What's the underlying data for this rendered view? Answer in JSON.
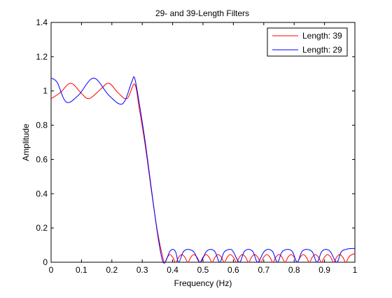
{
  "chart_data": {
    "type": "line",
    "title": "29- and 39-Length Filters",
    "xlabel": "Frequency (Hz)",
    "ylabel": "Amplitude",
    "xlim": [
      0,
      1
    ],
    "ylim": [
      0,
      1.4
    ],
    "x_ticks": [
      0,
      0.1,
      0.2,
      0.3,
      0.4,
      0.5,
      0.6,
      0.7,
      0.8,
      0.9,
      1
    ],
    "x_tick_labels": [
      "0",
      "0.1",
      "0.2",
      "0.3",
      "0.4",
      "0.5",
      "0.6",
      "0.7",
      "0.8",
      "0.9",
      "1"
    ],
    "y_ticks": [
      0,
      0.2,
      0.4,
      0.6,
      0.8,
      1,
      1.2,
      1.4
    ],
    "y_tick_labels": [
      "0",
      "0.2",
      "0.4",
      "0.6",
      "0.8",
      "1",
      "1.2",
      "1.4"
    ],
    "grid": false,
    "legend_position": "top-right",
    "series": [
      {
        "name": "Length: 39",
        "color": "#ff0000",
        "x": [
          0,
          0.03,
          0.065,
          0.1,
          0.125,
          0.16,
          0.19,
          0.22,
          0.25,
          0.275,
          0.29,
          0.31,
          0.33,
          0.35,
          0.37,
          0.375,
          0.38,
          0.39,
          0.4,
          0.41,
          0.42,
          0.43,
          0.44,
          0.45,
          0.46,
          0.47,
          0.48,
          0.49,
          0.5,
          0.51,
          0.52,
          0.53,
          0.54,
          0.55,
          0.56,
          0.57,
          0.58,
          0.59,
          0.6,
          0.61,
          0.62,
          0.63,
          0.64,
          0.65,
          0.66,
          0.67,
          0.68,
          0.69,
          0.7,
          0.71,
          0.72,
          0.73,
          0.74,
          0.75,
          0.76,
          0.77,
          0.78,
          0.79,
          0.8,
          0.81,
          0.82,
          0.83,
          0.84,
          0.85,
          0.86,
          0.87,
          0.88,
          0.89,
          0.9,
          0.91,
          0.92,
          0.93,
          0.94,
          0.95,
          0.96,
          0.97,
          0.98,
          0.99,
          1
        ],
        "y": [
          0.955,
          0.99,
          1.045,
          0.985,
          0.955,
          1.005,
          1.045,
          0.99,
          0.955,
          1.04,
          0.9,
          0.68,
          0.42,
          0.18,
          0.01,
          0.0,
          0.02,
          0.045,
          0.03,
          0.0,
          0.03,
          0.045,
          0.03,
          0.0,
          0.03,
          0.045,
          0.03,
          0.0,
          0.03,
          0.045,
          0.03,
          0.0,
          0.03,
          0.045,
          0.03,
          0.0,
          0.03,
          0.045,
          0.03,
          0.0,
          0.03,
          0.045,
          0.03,
          0.0,
          0.03,
          0.045,
          0.03,
          0.0,
          0.03,
          0.045,
          0.03,
          0.0,
          0.03,
          0.045,
          0.03,
          0.0,
          0.03,
          0.045,
          0.03,
          0.0,
          0.03,
          0.045,
          0.03,
          0.0,
          0.03,
          0.045,
          0.03,
          0.0,
          0.03,
          0.045,
          0.03,
          0.0,
          0.03,
          0.045,
          0.03,
          0.0,
          0.03,
          0.045,
          0.05
        ]
      },
      {
        "name": "Length: 29",
        "color": "#0000ff",
        "x": [
          0,
          0.02,
          0.05,
          0.09,
          0.14,
          0.19,
          0.235,
          0.265,
          0.275,
          0.29,
          0.31,
          0.33,
          0.35,
          0.365,
          0.375,
          0.39,
          0.4,
          0.41,
          0.42,
          0.435,
          0.45,
          0.47,
          0.49,
          0.51,
          0.525,
          0.54,
          0.555,
          0.57,
          0.59,
          0.6,
          0.62,
          0.635,
          0.65,
          0.665,
          0.68,
          0.7,
          0.715,
          0.73,
          0.745,
          0.76,
          0.78,
          0.795,
          0.81,
          0.825,
          0.84,
          0.86,
          0.875,
          0.89,
          0.905,
          0.92,
          0.94,
          0.955,
          0.97,
          0.985,
          1
        ],
        "y": [
          1.075,
          1.05,
          0.935,
          0.975,
          1.075,
          0.975,
          0.925,
          1.05,
          1.075,
          0.93,
          0.7,
          0.43,
          0.17,
          0.02,
          0.0,
          0.06,
          0.075,
          0.06,
          0.0,
          0.06,
          0.075,
          0.06,
          0.0,
          0.06,
          0.075,
          0.06,
          0.0,
          0.06,
          0.075,
          0.06,
          0.0,
          0.06,
          0.075,
          0.06,
          0.0,
          0.06,
          0.075,
          0.06,
          0.0,
          0.06,
          0.075,
          0.06,
          0.0,
          0.06,
          0.075,
          0.06,
          0.0,
          0.06,
          0.075,
          0.06,
          0.0,
          0.06,
          0.075,
          0.08,
          0.08
        ]
      }
    ]
  }
}
